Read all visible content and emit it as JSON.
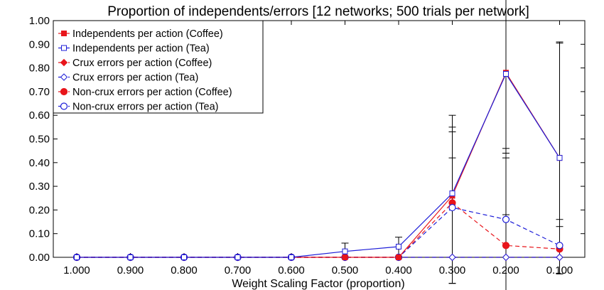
{
  "chart_data": {
    "type": "line",
    "title": "Proportion of independents/errors [12 networks; 500 trials per network]",
    "xlabel": "Weight Scaling Factor (proportion)",
    "ylabel": "",
    "ylim": [
      0,
      1
    ],
    "yticks": [
      "0.00",
      "0.10",
      "0.20",
      "0.30",
      "0.40",
      "0.50",
      "0.60",
      "0.70",
      "0.80",
      "0.90",
      "1.00"
    ],
    "x": [
      "1.000",
      "0.900",
      "0.800",
      "0.700",
      "0.600",
      "0.500",
      "0.400",
      "0.300",
      "0.200",
      "0.100"
    ],
    "x_values": [
      1.0,
      0.9,
      0.8,
      0.7,
      0.6,
      0.5,
      0.4,
      0.3,
      0.2,
      0.1
    ],
    "grid": false,
    "legend_position": "top-left",
    "series": [
      {
        "name": "Independents per action (Coffee)",
        "color": "#e8151b",
        "dash": "solid",
        "marker": "square-filled",
        "values": [
          0,
          0,
          0,
          0,
          0,
          0,
          0,
          0.26,
          0.78,
          0.42
        ]
      },
      {
        "name": "Independents per action (Tea)",
        "color": "#1c1cd8",
        "dash": "solid",
        "marker": "square-open",
        "values": [
          0,
          0,
          0,
          0,
          0,
          0.025,
          0.045,
          0.27,
          0.775,
          0.42
        ]
      },
      {
        "name": "Crux errors per action (Coffee)",
        "color": "#e8151b",
        "dash": "dashed",
        "marker": "diamond-filled",
        "values": [
          0,
          0,
          0,
          0,
          0,
          0,
          0,
          0,
          0,
          0
        ]
      },
      {
        "name": "Crux errors per action (Tea)",
        "color": "#1c1cd8",
        "dash": "dashed",
        "marker": "diamond-open",
        "values": [
          0,
          0,
          0,
          0,
          0,
          0,
          0,
          0,
          0,
          0
        ]
      },
      {
        "name": "Non-crux errors per action (Coffee)",
        "color": "#e8151b",
        "dash": "dashed",
        "marker": "circle-filled",
        "values": [
          0,
          0,
          0,
          0,
          0,
          0,
          0,
          0.23,
          0.05,
          0.035
        ]
      },
      {
        "name": "Non-crux errors per action (Tea)",
        "color": "#1c1cd8",
        "dash": "dashed",
        "marker": "circle-open",
        "values": [
          0,
          0,
          0,
          0,
          0,
          0,
          0,
          0.21,
          0.16,
          0.05
        ]
      }
    ],
    "error_bars": [
      {
        "x": 0.5,
        "low": 0.0,
        "high": 0.06
      },
      {
        "x": 0.4,
        "low": 0.0,
        "high": 0.085
      },
      {
        "x": 0.3,
        "low": -0.11,
        "high": 0.6
      },
      {
        "x": 0.3,
        "low": -0.11,
        "high": 0.55
      },
      {
        "x": 0.3,
        "low": -0.11,
        "high": 0.53
      },
      {
        "x": 0.3,
        "low": 0.0,
        "high": 0.42
      },
      {
        "x": 0.2,
        "low": -0.15,
        "high": 1.12
      },
      {
        "x": 0.2,
        "low": 0.0,
        "high": 0.46
      },
      {
        "x": 0.2,
        "low": 0.0,
        "high": 0.44
      },
      {
        "x": 0.2,
        "low": 0.0,
        "high": 0.42
      },
      {
        "x": 0.2,
        "low": 0.0,
        "high": 0.18
      },
      {
        "x": 0.1,
        "low": -0.07,
        "high": 0.91
      },
      {
        "x": 0.1,
        "low": -0.07,
        "high": 0.905
      },
      {
        "x": 0.1,
        "low": 0.0,
        "high": 0.16
      },
      {
        "x": 0.1,
        "low": 0.0,
        "high": 0.13
      }
    ]
  }
}
